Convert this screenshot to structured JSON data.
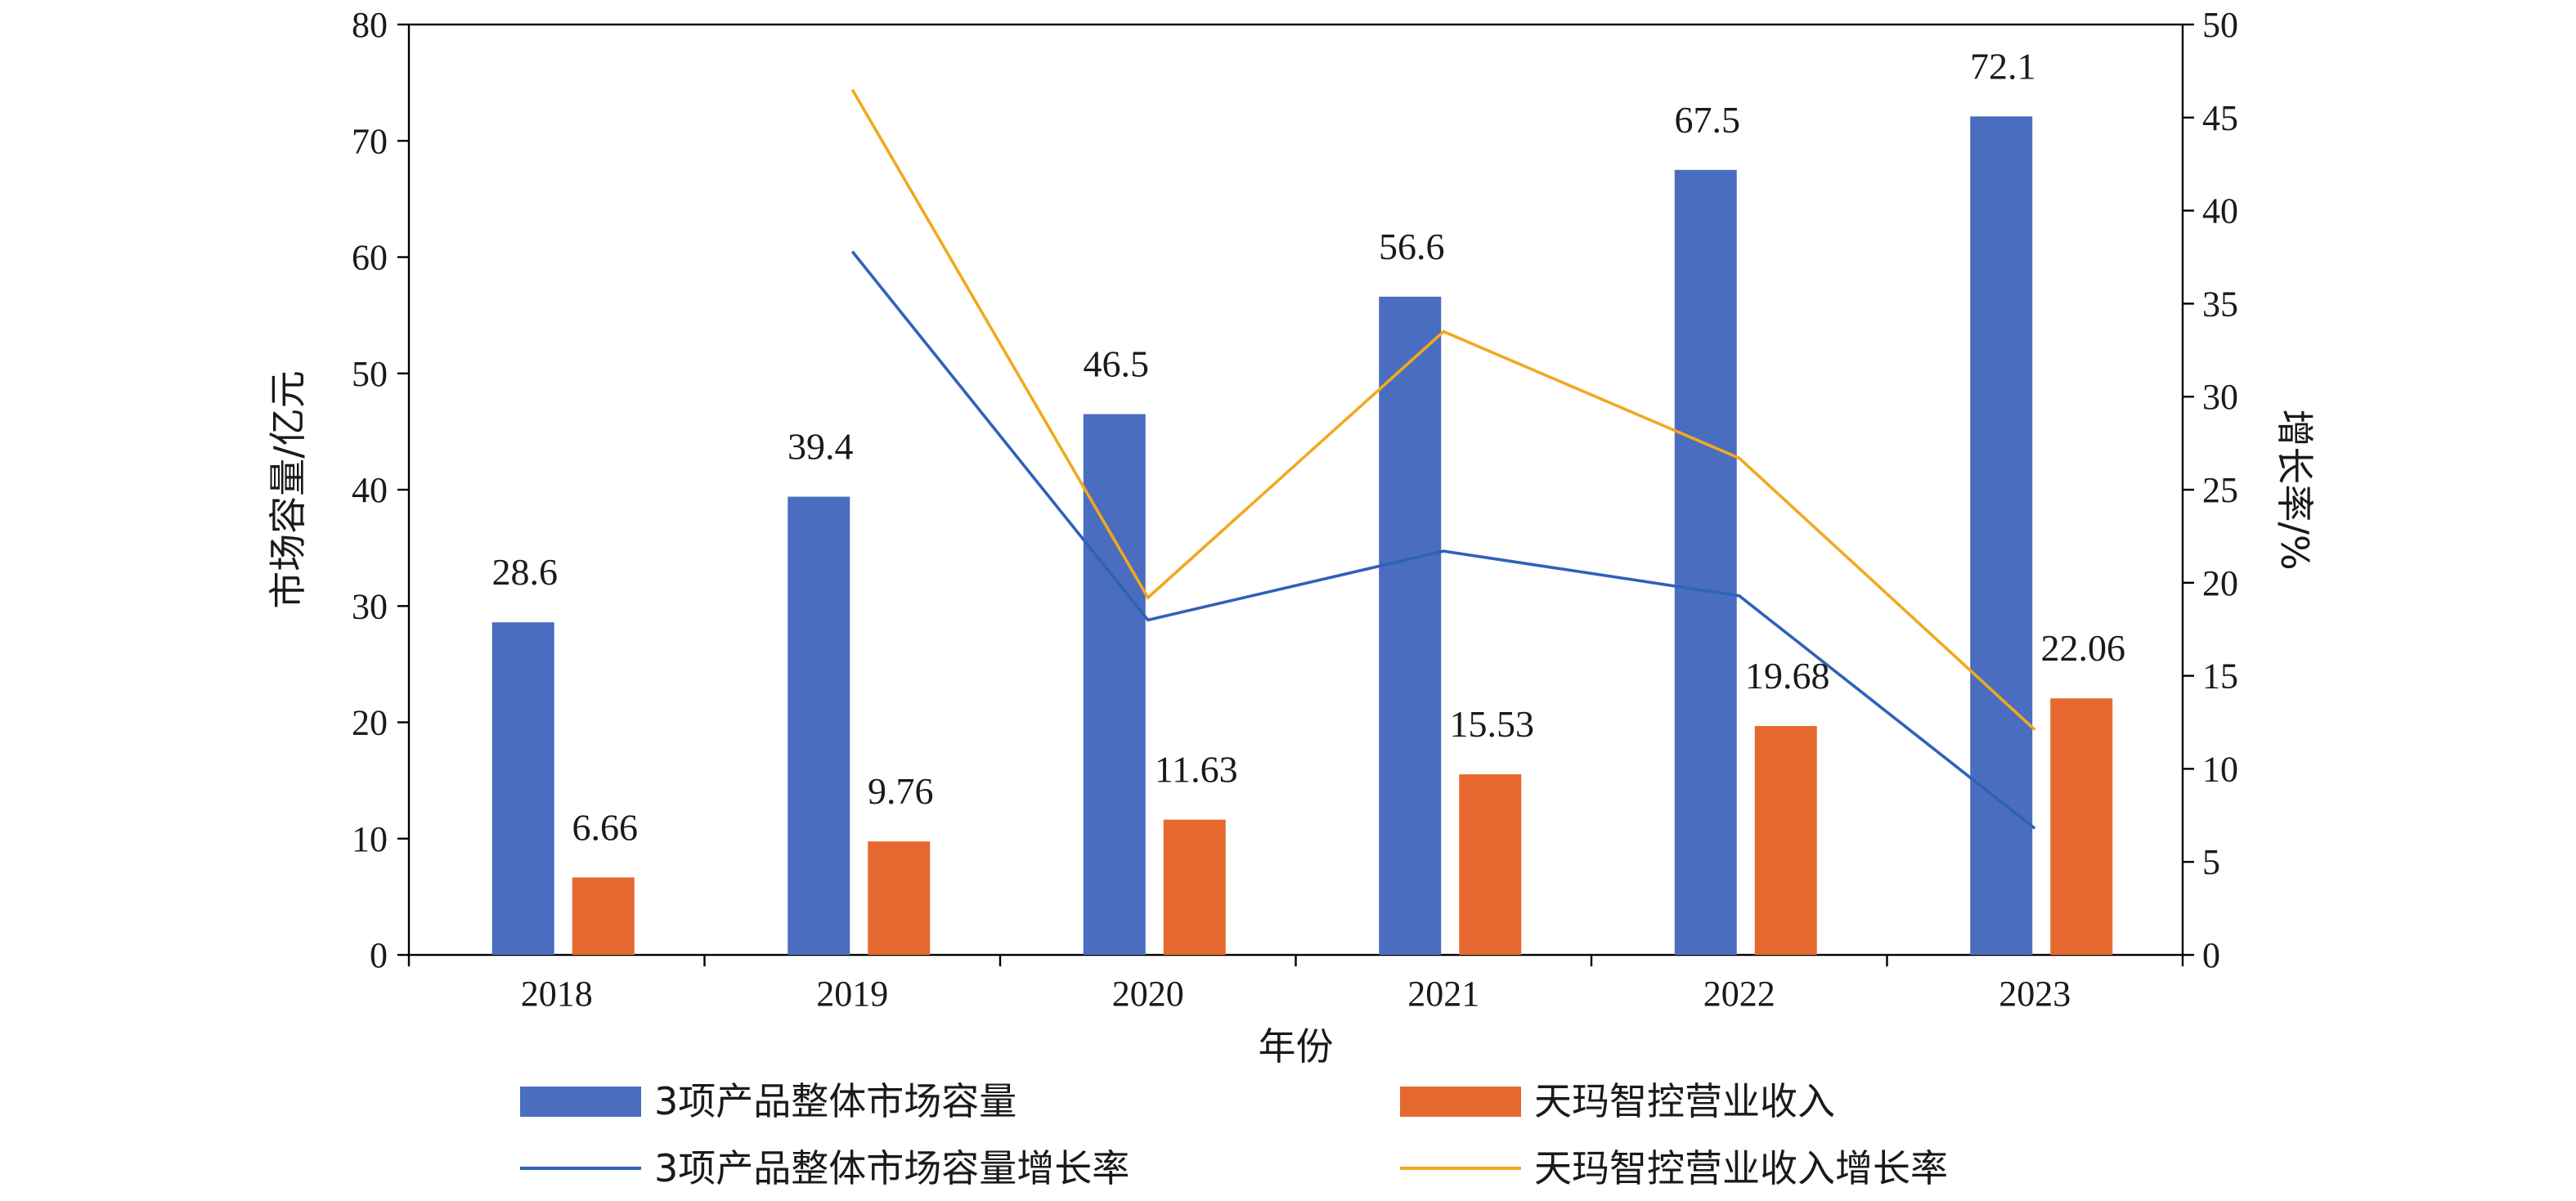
{
  "chart_data": {
    "type": "bar",
    "categories": [
      "2018",
      "2019",
      "2020",
      "2021",
      "2022",
      "2023"
    ],
    "xlabel": "年份",
    "ylabel": "市场容量/亿元",
    "y2label": "增长率/%",
    "ylim": [
      0,
      80
    ],
    "y2lim": [
      0,
      50
    ],
    "yticks": [
      0,
      10,
      20,
      30,
      40,
      50,
      60,
      70,
      80
    ],
    "y2ticks": [
      0,
      5,
      10,
      15,
      20,
      25,
      30,
      35,
      40,
      45,
      50
    ],
    "grid": false,
    "legend_position": "bottom",
    "series": [
      {
        "name": "3项产品整体市场容量",
        "type": "bar",
        "axis": "left",
        "color": "#4a6dbf",
        "values": [
          28.6,
          39.4,
          46.5,
          56.6,
          67.5,
          72.1
        ],
        "labels": [
          "28.6",
          "39.4",
          "46.5",
          "56.6",
          "67.5",
          "72.1"
        ]
      },
      {
        "name": "天玛智控营业收入",
        "type": "bar",
        "axis": "left",
        "color": "#e5692f",
        "values": [
          6.66,
          9.76,
          11.63,
          15.53,
          19.68,
          22.06
        ],
        "labels": [
          "6.66",
          "9.76",
          "11.63",
          "15.53",
          "19.68",
          "22.06"
        ]
      },
      {
        "name": "3项产品整体市场容量增长率",
        "type": "line",
        "axis": "right",
        "color": "#2e62b8",
        "values": [
          null,
          37.8,
          18.0,
          21.7,
          19.3,
          6.8
        ]
      },
      {
        "name": "天玛智控营业收入增长率",
        "type": "line",
        "axis": "right",
        "color": "#f0a91e",
        "values": [
          null,
          46.5,
          19.2,
          33.5,
          26.7,
          12.1
        ]
      }
    ]
  }
}
